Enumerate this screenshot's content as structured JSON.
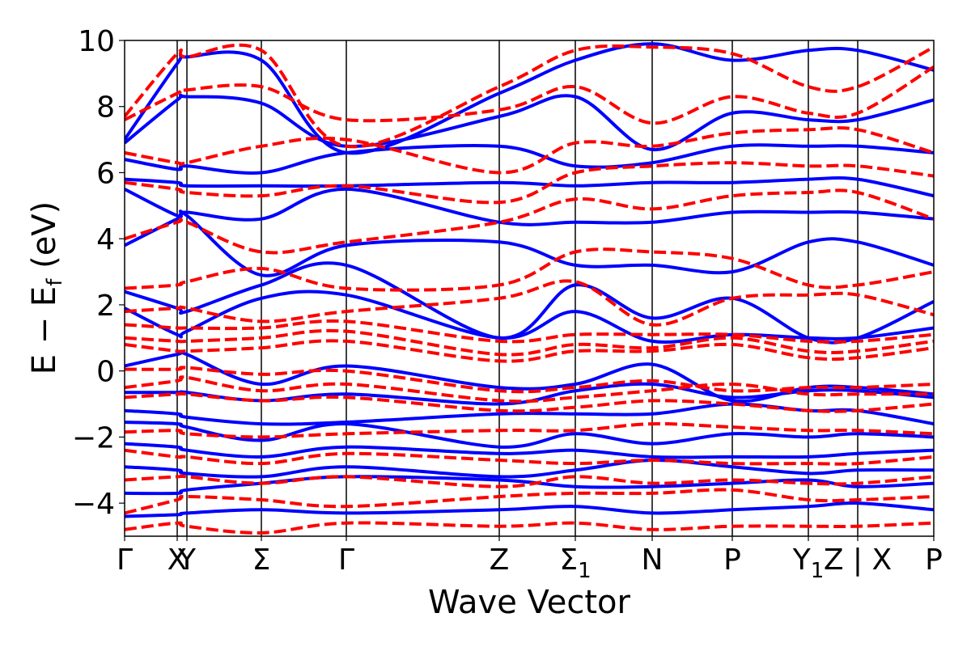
{
  "chart_data": {
    "type": "line",
    "xlabel": "Wave Vector",
    "ylabel_main": "E − E",
    "ylabel_sub": "f",
    "ylabel_unit": " (eV)",
    "ylim": [
      -5,
      10
    ],
    "y_ticks": [
      -4,
      -2,
      0,
      2,
      4,
      6,
      8,
      10
    ],
    "k_points": [
      {
        "label": "Γ",
        "x": 0.0
      },
      {
        "label": "X",
        "x": 0.065
      },
      {
        "label": "Y",
        "x": 0.077
      },
      {
        "label": "Σ",
        "x": 0.169
      },
      {
        "label": "Γ",
        "x": 0.274
      },
      {
        "label": "Z",
        "x": 0.463
      },
      {
        "label": "Σ",
        "sub": "1",
        "x": 0.557
      },
      {
        "label": "N",
        "x": 0.652
      },
      {
        "label": "P",
        "x": 0.751
      },
      {
        "label": "Y",
        "sub": "1",
        "x": 0.845
      },
      {
        "label": "Z | X",
        "x": 0.906
      },
      {
        "label": "P",
        "x": 1.0
      }
    ],
    "line_colors": {
      "solid": "#0000ff",
      "dashed": "#ff0000"
    },
    "series": [
      {
        "style": "solid",
        "color": "#0000ff",
        "bands": [
          [
            -4.4,
            -4.35,
            -4.3,
            -4.2,
            -4.3,
            -4.2,
            -4.1,
            -4.3,
            -4.2,
            -4.1,
            -4.0,
            -4.2
          ],
          [
            -3.7,
            -3.7,
            -3.6,
            -3.4,
            -3.2,
            -3.3,
            -3.5,
            -3.5,
            -3.4,
            -3.3,
            -3.5,
            -3.4
          ],
          [
            -2.9,
            -3.0,
            -3.1,
            -3.2,
            -2.9,
            -3.2,
            -3.0,
            -2.7,
            -2.9,
            -3.1,
            -3.0,
            -3.0
          ],
          [
            -2.2,
            -2.3,
            -2.4,
            -2.6,
            -2.3,
            -2.5,
            -2.4,
            -2.6,
            -2.6,
            -2.6,
            -2.5,
            -2.4
          ],
          [
            -1.55,
            -1.6,
            -1.7,
            -2.1,
            -1.6,
            -2.3,
            -1.9,
            -2.2,
            -1.9,
            -2.0,
            -1.9,
            -2.0
          ],
          [
            -1.2,
            -1.3,
            -1.4,
            -1.6,
            -1.55,
            -1.3,
            -1.3,
            -1.3,
            -1.0,
            -1.2,
            -1.2,
            -1.6
          ],
          [
            -0.65,
            -0.65,
            -0.65,
            -0.9,
            -0.7,
            -1.0,
            -0.6,
            -0.4,
            -0.8,
            -0.6,
            -0.6,
            -0.8
          ],
          [
            0.15,
            0.5,
            0.5,
            -0.4,
            0.15,
            -0.5,
            -0.4,
            0.2,
            -0.9,
            -0.5,
            -0.5,
            -0.7
          ],
          [
            1.9,
            1.1,
            1.2,
            2.2,
            2.3,
            1.0,
            1.8,
            0.9,
            1.1,
            1.0,
            1.0,
            1.3
          ],
          [
            2.4,
            1.9,
            1.8,
            2.6,
            3.2,
            1.0,
            2.6,
            1.6,
            2.2,
            1.0,
            1.0,
            2.1
          ],
          [
            3.8,
            4.6,
            4.7,
            2.9,
            3.8,
            3.9,
            3.2,
            3.2,
            3.0,
            3.9,
            3.9,
            3.2
          ],
          [
            5.5,
            4.7,
            4.8,
            4.6,
            5.5,
            4.5,
            4.5,
            4.5,
            4.8,
            4.8,
            4.8,
            4.6
          ],
          [
            5.8,
            5.7,
            5.6,
            5.6,
            5.6,
            5.7,
            5.6,
            5.7,
            5.7,
            5.8,
            5.8,
            5.3
          ],
          [
            6.4,
            6.1,
            6.2,
            6.0,
            6.6,
            6.8,
            6.2,
            6.3,
            6.8,
            6.8,
            6.8,
            6.6
          ],
          [
            6.9,
            8.2,
            8.3,
            8.1,
            6.8,
            7.7,
            8.3,
            6.7,
            7.8,
            7.6,
            7.6,
            8.2
          ],
          [
            7.0,
            9.3,
            9.5,
            9.4,
            6.6,
            8.4,
            9.4,
            9.9,
            9.4,
            9.7,
            9.7,
            9.1
          ]
        ]
      },
      {
        "style": "dashed",
        "color": "#ff0000",
        "bands": [
          [
            -4.8,
            -4.6,
            -4.7,
            -4.9,
            -4.6,
            -4.7,
            -4.6,
            -4.8,
            -4.7,
            -4.7,
            -4.7,
            -4.6
          ],
          [
            -4.3,
            -3.9,
            -3.8,
            -3.9,
            -4.1,
            -3.8,
            -3.7,
            -3.7,
            -3.6,
            -3.9,
            -3.9,
            -3.8
          ],
          [
            -3.3,
            -3.2,
            -3.2,
            -3.4,
            -3.2,
            -3.5,
            -3.2,
            -3.4,
            -3.3,
            -3.4,
            -3.4,
            -3.2
          ],
          [
            -2.4,
            -2.6,
            -2.6,
            -2.8,
            -2.5,
            -2.7,
            -2.8,
            -2.7,
            -2.8,
            -2.8,
            -2.8,
            -2.6
          ],
          [
            -1.85,
            -1.8,
            -1.9,
            -2.0,
            -1.9,
            -1.8,
            -1.8,
            -1.6,
            -1.7,
            -1.8,
            -1.8,
            -1.9
          ],
          [
            -0.8,
            -0.7,
            -0.7,
            -0.9,
            -0.8,
            -1.2,
            -1.1,
            -0.9,
            -1.0,
            -1.2,
            -1.2,
            -1.0
          ],
          [
            -0.5,
            -0.3,
            -0.2,
            -0.6,
            -0.4,
            -0.9,
            -0.8,
            -0.6,
            -0.4,
            -0.7,
            -0.7,
            -0.7
          ],
          [
            0.05,
            0.05,
            0.1,
            -0.1,
            0.0,
            -0.6,
            -0.5,
            -0.3,
            -0.6,
            -0.5,
            -0.5,
            -0.4
          ],
          [
            0.8,
            0.6,
            0.6,
            0.7,
            0.9,
            0.3,
            0.6,
            0.6,
            0.8,
            0.4,
            0.4,
            0.7
          ],
          [
            1.0,
            0.9,
            0.9,
            1.0,
            1.2,
            0.5,
            0.8,
            0.7,
            1.0,
            0.6,
            0.6,
            0.9
          ],
          [
            1.4,
            1.3,
            1.3,
            1.3,
            1.5,
            0.9,
            1.1,
            1.1,
            1.1,
            0.9,
            0.9,
            1.1
          ],
          [
            1.8,
            1.9,
            1.9,
            1.5,
            1.8,
            2.2,
            2.7,
            1.4,
            2.2,
            2.3,
            2.3,
            1.7
          ],
          [
            2.5,
            2.6,
            2.7,
            3.1,
            2.5,
            2.6,
            3.6,
            3.6,
            3.4,
            2.6,
            2.6,
            3.0
          ],
          [
            4.0,
            4.5,
            4.5,
            3.6,
            3.9,
            4.5,
            5.2,
            4.9,
            5.3,
            5.4,
            5.4,
            4.6
          ],
          [
            5.7,
            5.5,
            5.4,
            5.3,
            5.6,
            5.1,
            6.0,
            6.2,
            6.3,
            6.2,
            6.2,
            5.9
          ],
          [
            6.6,
            6.3,
            6.3,
            6.8,
            7.0,
            6.0,
            6.9,
            6.8,
            7.2,
            7.3,
            7.3,
            6.6
          ],
          [
            7.6,
            8.4,
            8.5,
            8.6,
            7.6,
            7.9,
            8.6,
            7.5,
            8.3,
            7.8,
            7.8,
            9.2
          ],
          [
            7.7,
            9.6,
            9.5,
            9.7,
            6.8,
            8.6,
            9.7,
            9.8,
            9.6,
            8.6,
            8.6,
            9.8
          ]
        ]
      }
    ]
  }
}
